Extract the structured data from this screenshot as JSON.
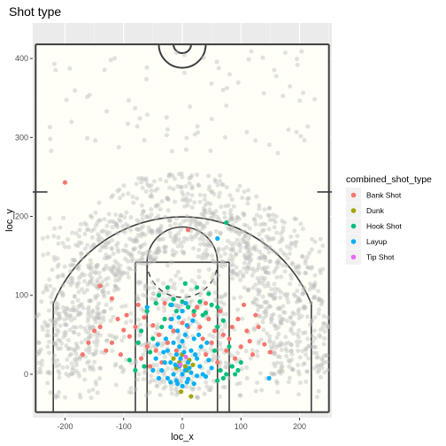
{
  "chart_data": {
    "type": "scatter",
    "title": "Shot type",
    "xlabel": "loc_x",
    "ylabel": "loc_y",
    "xlim": [
      -255,
      255
    ],
    "ylim": [
      -55,
      445
    ],
    "x_ticks": [
      -200,
      -100,
      0,
      100,
      200
    ],
    "y_ticks": [
      0,
      100,
      200,
      300,
      400
    ],
    "grid": true,
    "panel_background": "#ebebeb",
    "court_fill": "#fffff8",
    "court_line_color": "#3d3d3d",
    "background_points_color": "#bdbdbd",
    "legend": {
      "title": "combined_shot_type",
      "position": "right",
      "entries": [
        {
          "label": "Bank Shot",
          "color": "#F8766D"
        },
        {
          "label": "Dunk",
          "color": "#A3A500"
        },
        {
          "label": "Hook Shot",
          "color": "#00BF7D"
        },
        {
          "label": "Layup",
          "color": "#00B0F6"
        },
        {
          "label": "Tip Shot",
          "color": "#E76BF3"
        }
      ]
    },
    "series": [
      {
        "name": "Bank Shot",
        "points": [
          [
            -200,
            243
          ],
          [
            10,
            183
          ],
          [
            -140,
            112
          ],
          [
            -120,
            96
          ],
          [
            -110,
            70
          ],
          [
            -100,
            56
          ],
          [
            -90,
            48
          ],
          [
            -130,
            30
          ],
          [
            -150,
            55
          ],
          [
            -160,
            40
          ],
          [
            -80,
            60
          ],
          [
            -70,
            20
          ],
          [
            -60,
            35
          ],
          [
            -55,
            10
          ],
          [
            -45,
            30
          ],
          [
            -40,
            50
          ],
          [
            -35,
            15
          ],
          [
            -25,
            40
          ],
          [
            -20,
            70
          ],
          [
            -15,
            55
          ],
          [
            -10,
            30
          ],
          [
            0,
            65
          ],
          [
            10,
            60
          ],
          [
            20,
            75
          ],
          [
            30,
            60
          ],
          [
            35,
            45
          ],
          [
            40,
            25
          ],
          [
            45,
            70
          ],
          [
            50,
            40
          ],
          [
            55,
            55
          ],
          [
            60,
            15
          ],
          [
            70,
            50
          ],
          [
            75,
            30
          ],
          [
            80,
            45
          ],
          [
            85,
            60
          ],
          [
            90,
            20
          ],
          [
            100,
            35
          ],
          [
            110,
            55
          ],
          [
            115,
            42
          ],
          [
            120,
            25
          ],
          [
            130,
            60
          ],
          [
            140,
            38
          ],
          [
            150,
            28
          ],
          [
            -170,
            25
          ],
          [
            -140,
            60
          ],
          [
            -120,
            40
          ],
          [
            -105,
            25
          ],
          [
            -95,
            75
          ],
          [
            -75,
            88
          ],
          [
            -65,
            72
          ],
          [
            65,
            80
          ],
          [
            95,
            70
          ],
          [
            105,
            88
          ],
          [
            125,
            75
          ],
          [
            -50,
            62
          ],
          [
            25,
            85
          ],
          [
            -30,
            90
          ],
          [
            40,
            90
          ]
        ]
      },
      {
        "name": "Dunk",
        "points": [
          [
            -2,
            -22
          ],
          [
            15,
            -28
          ],
          [
            5,
            10
          ],
          [
            -5,
            15
          ],
          [
            8,
            5
          ],
          [
            -10,
            8
          ],
          [
            12,
            18
          ],
          [
            0,
            25
          ],
          [
            -15,
            20
          ],
          [
            18,
            12
          ]
        ]
      },
      {
        "name": "Hook Shot",
        "points": [
          [
            75,
            192
          ],
          [
            -60,
            80
          ],
          [
            -45,
            90
          ],
          [
            -30,
            70
          ],
          [
            -20,
            88
          ],
          [
            -10,
            80
          ],
          [
            0,
            92
          ],
          [
            10,
            85
          ],
          [
            20,
            80
          ],
          [
            30,
            92
          ],
          [
            40,
            78
          ],
          [
            50,
            88
          ],
          [
            60,
            85
          ],
          [
            70,
            68
          ],
          [
            -70,
            55
          ],
          [
            -50,
            45
          ],
          [
            55,
            30
          ],
          [
            -65,
            10
          ],
          [
            65,
            5
          ],
          [
            75,
            0
          ],
          [
            85,
            10
          ],
          [
            -80,
            5
          ],
          [
            95,
            5
          ],
          [
            -90,
            18
          ],
          [
            100,
            15
          ],
          [
            -40,
            100
          ],
          [
            45,
            102
          ],
          [
            -25,
            110
          ],
          [
            25,
            110
          ],
          [
            5,
            115
          ],
          [
            -15,
            95
          ],
          [
            35,
            75
          ],
          [
            -35,
            60
          ],
          [
            60,
            60
          ],
          [
            -55,
            28
          ],
          [
            80,
            35
          ],
          [
            -75,
            40
          ],
          [
            70,
            -5
          ],
          [
            60,
            -8
          ],
          [
            90,
            0
          ]
        ]
      },
      {
        "name": "Layup",
        "points": [
          [
            60,
            172
          ],
          [
            148,
            -5
          ],
          [
            -60,
            85
          ],
          [
            -20,
            60
          ],
          [
            -15,
            40
          ],
          [
            -10,
            25
          ],
          [
            -5,
            10
          ],
          [
            0,
            0
          ],
          [
            5,
            5
          ],
          [
            10,
            15
          ],
          [
            15,
            30
          ],
          [
            20,
            45
          ],
          [
            25,
            20
          ],
          [
            -25,
            30
          ],
          [
            -30,
            15
          ],
          [
            30,
            10
          ],
          [
            -35,
            5
          ],
          [
            35,
            0
          ],
          [
            -40,
            -5
          ],
          [
            40,
            -3
          ],
          [
            -20,
            -10
          ],
          [
            20,
            -12
          ],
          [
            0,
            -15
          ],
          [
            -10,
            -8
          ],
          [
            10,
            -6
          ],
          [
            -5,
            35
          ],
          [
            5,
            50
          ],
          [
            -8,
            55
          ],
          [
            8,
            62
          ],
          [
            -18,
            70
          ],
          [
            18,
            68
          ],
          [
            0,
            80
          ],
          [
            -28,
            45
          ],
          [
            28,
            50
          ],
          [
            -45,
            20
          ],
          [
            45,
            18
          ],
          [
            -50,
            5
          ],
          [
            50,
            8
          ],
          [
            -15,
            0
          ],
          [
            15,
            2
          ],
          [
            -25,
            -5
          ],
          [
            25,
            -2
          ],
          [
            -12,
            12
          ],
          [
            12,
            8
          ],
          [
            -3,
            20
          ],
          [
            3,
            28
          ],
          [
            -32,
            28
          ],
          [
            32,
            35
          ],
          [
            -8,
            -12
          ],
          [
            8,
            -10
          ],
          [
            -20,
            15
          ],
          [
            22,
            25
          ],
          [
            -42,
            38
          ],
          [
            42,
            40
          ],
          [
            0,
            42
          ],
          [
            -6,
            72
          ],
          [
            6,
            90
          ],
          [
            -18,
            88
          ]
        ]
      },
      {
        "name": "Tip Shot",
        "points": [
          [
            -3,
            12
          ],
          [
            6,
            22
          ]
        ]
      }
    ],
    "background_points_count": 1800
  }
}
